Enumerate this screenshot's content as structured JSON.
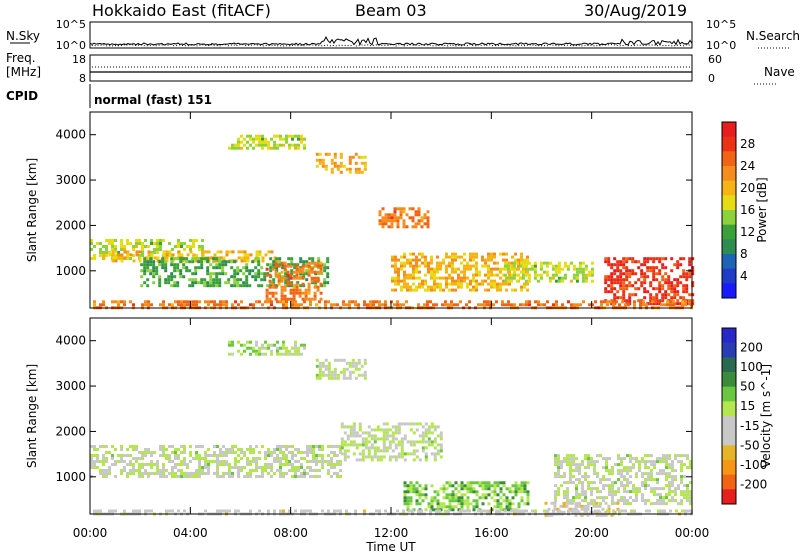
{
  "header": {
    "station": "Hokkaido East (fitACF)",
    "beam": "Beam 03",
    "date": "30/Aug/2019"
  },
  "status_panels": {
    "nsky_label": "N.Sky",
    "nsky_top": "10^5",
    "nsky_bottom": "10^0",
    "nsearch_label": "N.Search",
    "nsearch_top": "10^5",
    "nsearch_bottom": "10^0",
    "freq_label": "Freq.",
    "freq_unit": "[MHz]",
    "freq_top": "18",
    "freq_bottom": "8",
    "nave_label": "Nave",
    "nave_top": "60",
    "nave_bottom": "0",
    "cpid_label": "CPID",
    "cpid_value": "normal (fast) 151"
  },
  "colors": {
    "power_scale": [
      "#1a1aff",
      "#1e3cc8",
      "#1e64b4",
      "#2e8c50",
      "#3aa03a",
      "#8cd23c",
      "#e6dc14",
      "#f5b414",
      "#f58c1e",
      "#f06414",
      "#eb3214",
      "#e61e1e"
    ],
    "velocity_scale": [
      "#2828c8",
      "#283cb4",
      "#2a6a50",
      "#3a8c3a",
      "#6ac840",
      "#b4e650",
      "#c8c8c8",
      "#c8c8c8",
      "#e6b428",
      "#f59614",
      "#f06414",
      "#e61e1e"
    ]
  },
  "chart_data": [
    {
      "type": "heatmap",
      "title": "Power",
      "xlabel": "",
      "ylabel": "Slant Range [km]",
      "x_ticks": [
        "00:00",
        "04:00",
        "08:00",
        "12:00",
        "16:00",
        "20:00",
        "00:00"
      ],
      "y_ticks": [
        "1000",
        "2000",
        "3000",
        "4000"
      ],
      "ylim": [
        180,
        4500
      ],
      "colorbar_label": "Power [dB]",
      "colorbar_ticks": [
        "4",
        "8",
        "12",
        "16",
        "20",
        "24",
        "28"
      ],
      "colorbar_range": [
        0,
        32
      ],
      "regions": [
        {
          "t0": 0.0,
          "t1": 4.5,
          "r0": 1300,
          "r1": 1700,
          "value": 16
        },
        {
          "t0": 0.5,
          "t1": 7.5,
          "r0": 1200,
          "r1": 1450,
          "value": 20
        },
        {
          "t0": 2.0,
          "t1": 9.5,
          "r0": 700,
          "r1": 1300,
          "value": 12
        },
        {
          "t0": 7.0,
          "t1": 9.2,
          "r0": 400,
          "r1": 1200,
          "value": 24
        },
        {
          "t0": 5.5,
          "t1": 8.5,
          "r0": 3700,
          "r1": 4000,
          "value": 16
        },
        {
          "t0": 9.0,
          "t1": 11.0,
          "r0": 3200,
          "r1": 3600,
          "value": 20
        },
        {
          "t0": 11.5,
          "t1": 13.5,
          "r0": 2000,
          "r1": 2400,
          "value": 24
        },
        {
          "t0": 12.0,
          "t1": 17.5,
          "r0": 600,
          "r1": 1400,
          "value": 20
        },
        {
          "t0": 16.5,
          "t1": 20.0,
          "r0": 800,
          "r1": 1200,
          "value": 16
        },
        {
          "t0": 20.5,
          "t1": 24.0,
          "r0": 300,
          "r1": 1300,
          "value": 28
        },
        {
          "t0": 0.0,
          "t1": 24.0,
          "r0": 200,
          "r1": 350,
          "value": 24
        }
      ]
    },
    {
      "type": "heatmap",
      "title": "Velocity",
      "xlabel": "Time UT",
      "ylabel": "Slant Range [km]",
      "x_ticks": [
        "00:00",
        "04:00",
        "08:00",
        "12:00",
        "16:00",
        "20:00",
        "00:00"
      ],
      "y_ticks": [
        "1000",
        "2000",
        "3000",
        "4000"
      ],
      "ylim": [
        180,
        4500
      ],
      "colorbar_label": "Velocity [m s^-1]",
      "colorbar_ticks": [
        "200",
        "100",
        "50",
        "15",
        "-15",
        "-50",
        "-100",
        "-200"
      ],
      "colorbar_range": [
        -250,
        250
      ],
      "regions": [
        {
          "t0": 0.0,
          "t1": 10.0,
          "r0": 1000,
          "r1": 1700,
          "value": 0
        },
        {
          "t0": 10.0,
          "t1": 14.0,
          "r0": 1400,
          "r1": 2200,
          "value": 0
        },
        {
          "t0": 12.5,
          "t1": 17.5,
          "r0": 300,
          "r1": 900,
          "value": 60
        },
        {
          "t0": 18.5,
          "t1": 24.0,
          "r0": 400,
          "r1": 1500,
          "value": 0
        },
        {
          "t0": 18.0,
          "t1": 21.0,
          "r0": 180,
          "r1": 450,
          "value": -60
        },
        {
          "t0": 5.5,
          "t1": 8.5,
          "r0": 3700,
          "r1": 4000,
          "value": 20
        },
        {
          "t0": 9.0,
          "t1": 11.0,
          "r0": 3200,
          "r1": 3600,
          "value": 0
        },
        {
          "t0": 0.0,
          "t1": 24.0,
          "r0": 180,
          "r1": 280,
          "value": -40
        }
      ]
    }
  ]
}
